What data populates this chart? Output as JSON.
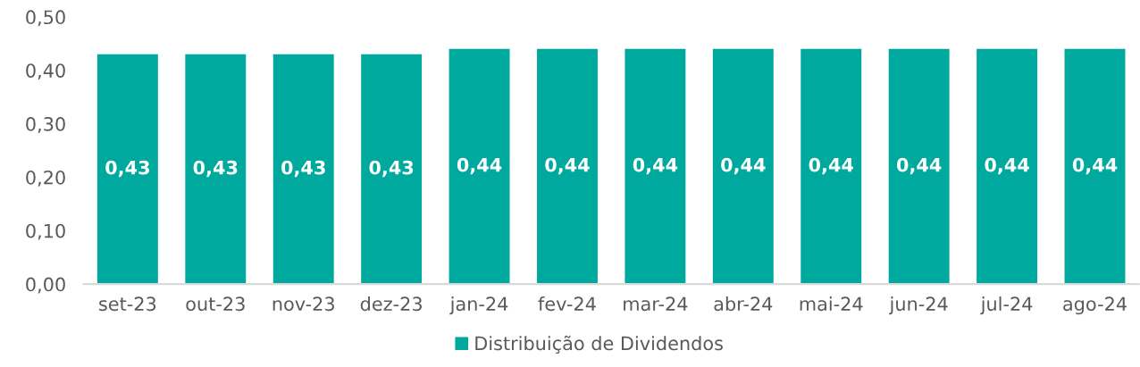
{
  "chart_data": {
    "type": "bar",
    "categories": [
      "set-23",
      "out-23",
      "nov-23",
      "dez-23",
      "jan-24",
      "fev-24",
      "mar-24",
      "abr-24",
      "mai-24",
      "jun-24",
      "jul-24",
      "ago-24"
    ],
    "series": [
      {
        "name": "Distribuição de Dividendos",
        "color": "#00a99d",
        "values": [
          0.43,
          0.43,
          0.43,
          0.43,
          0.44,
          0.44,
          0.44,
          0.44,
          0.44,
          0.44,
          0.44,
          0.44
        ],
        "value_labels": [
          "0,43",
          "0,43",
          "0,43",
          "0,43",
          "0,44",
          "0,44",
          "0,44",
          "0,44",
          "0,44",
          "0,44",
          "0,44",
          "0,44"
        ]
      }
    ],
    "ylim": [
      0,
      0.5
    ],
    "yticks": [
      {
        "value": 0,
        "label": "0,00"
      },
      {
        "value": 0.1,
        "label": "0,10"
      },
      {
        "value": 0.2,
        "label": "0,20"
      },
      {
        "value": 0.3,
        "label": "0,30"
      },
      {
        "value": 0.4,
        "label": "0,40"
      },
      {
        "value": 0.5,
        "label": "0,50"
      }
    ],
    "grid": false,
    "legend": "bottom"
  }
}
